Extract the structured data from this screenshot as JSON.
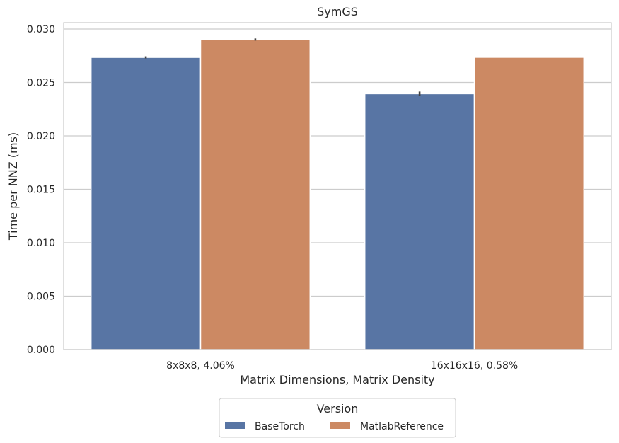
{
  "chart_data": {
    "type": "bar",
    "title": "SymGS",
    "xlabel": "Matrix Dimensions, Matrix Density",
    "ylabel": "Time per NNZ (ms)",
    "categories": [
      "8x8x8, 4.06%",
      "16x16x16, 0.58%"
    ],
    "series": [
      {
        "name": "BaseTorch",
        "values": [
          0.02735,
          0.02395
        ],
        "err": [
          0.0001,
          0.0002
        ],
        "color": "#5875a4"
      },
      {
        "name": "MatlabReference",
        "values": [
          0.02902,
          0.02736
        ],
        "err": [
          0.0001,
          0.0
        ],
        "color": "#cc8963"
      }
    ],
    "ylim": [
      0,
      0.0306
    ],
    "yticks": [
      "0.000",
      "0.005",
      "0.010",
      "0.015",
      "0.020",
      "0.025",
      "0.030"
    ],
    "ytick_values": [
      0,
      0.005,
      0.01,
      0.015,
      0.02,
      0.025,
      0.03
    ],
    "grid": true,
    "legend": {
      "title": "Version",
      "placement": "bottom-center, outside"
    }
  }
}
